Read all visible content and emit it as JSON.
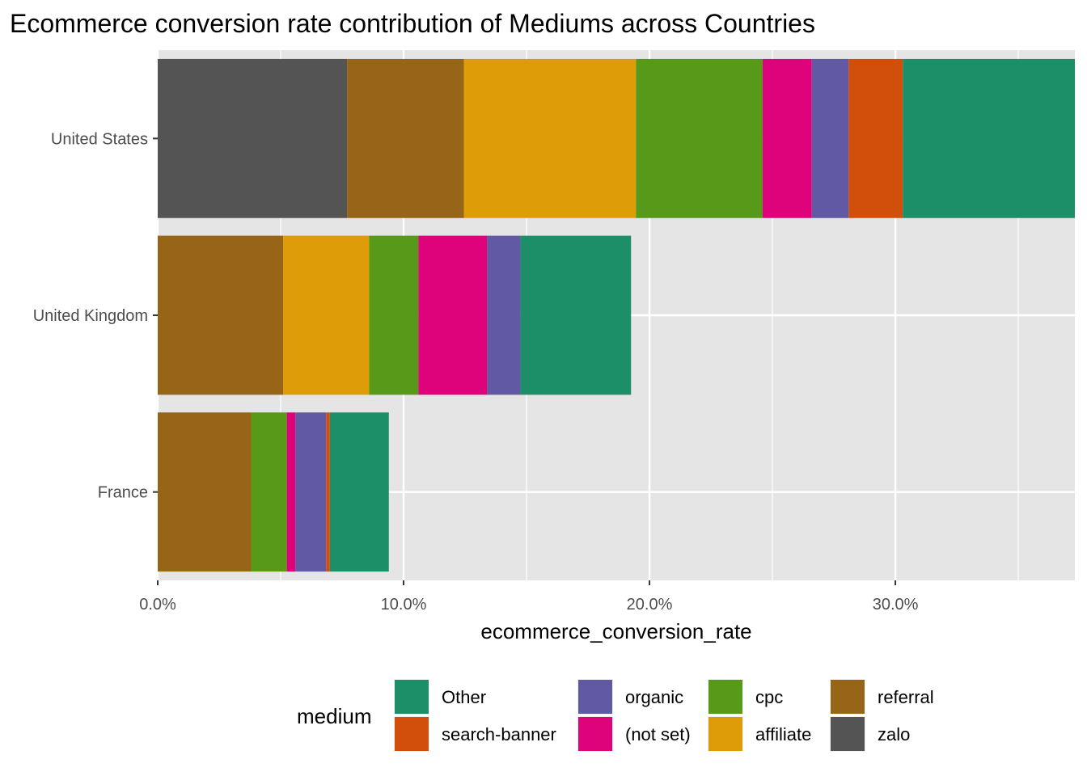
{
  "chart_data": {
    "type": "bar",
    "orientation": "horizontal",
    "stacked": true,
    "title": "Ecommerce conversion rate contribution of Mediums across Countries",
    "xlabel": "ecommerce_conversion_rate",
    "ylabel": "",
    "xlim": [
      0,
      0.373
    ],
    "x_ticks": [
      0,
      0.1,
      0.2,
      0.3
    ],
    "x_tick_labels": [
      "0.0%",
      "10.0%",
      "20.0%",
      "30.0%"
    ],
    "grid": true,
    "legend_title": "medium",
    "legend_position": "bottom",
    "categories": [
      "United States",
      "United Kingdom",
      "France"
    ],
    "stack_order": [
      "zalo",
      "referral",
      "affiliate",
      "cpc",
      "(not set)",
      "organic",
      "search-banner",
      "Other"
    ],
    "legend_order": [
      "Other",
      "search-banner",
      "organic",
      "(not set)",
      "cpc",
      "affiliate",
      "referral",
      "zalo"
    ],
    "series": [
      {
        "name": "zalo",
        "color": "#545454",
        "values": [
          0.077,
          0,
          0
        ]
      },
      {
        "name": "referral",
        "color": "#966518",
        "values": [
          0.0475,
          0.051,
          0.038
        ]
      },
      {
        "name": "affiliate",
        "color": "#DE9D08",
        "values": [
          0.07,
          0.035,
          0
        ]
      },
      {
        "name": "cpc",
        "color": "#579919",
        "values": [
          0.0515,
          0.02,
          0.0145
        ]
      },
      {
        "name": "(not set)",
        "color": "#DE037A",
        "values": [
          0.02,
          0.028,
          0.0035
        ]
      },
      {
        "name": "organic",
        "color": "#6159A4",
        "values": [
          0.015,
          0.0135,
          0.0125
        ]
      },
      {
        "name": "search-banner",
        "color": "#D24E0B",
        "values": [
          0.022,
          0,
          0.0015
        ]
      },
      {
        "name": "Other",
        "color": "#1D8F68",
        "values": [
          0.0706,
          0.045,
          0.024
        ]
      }
    ]
  }
}
